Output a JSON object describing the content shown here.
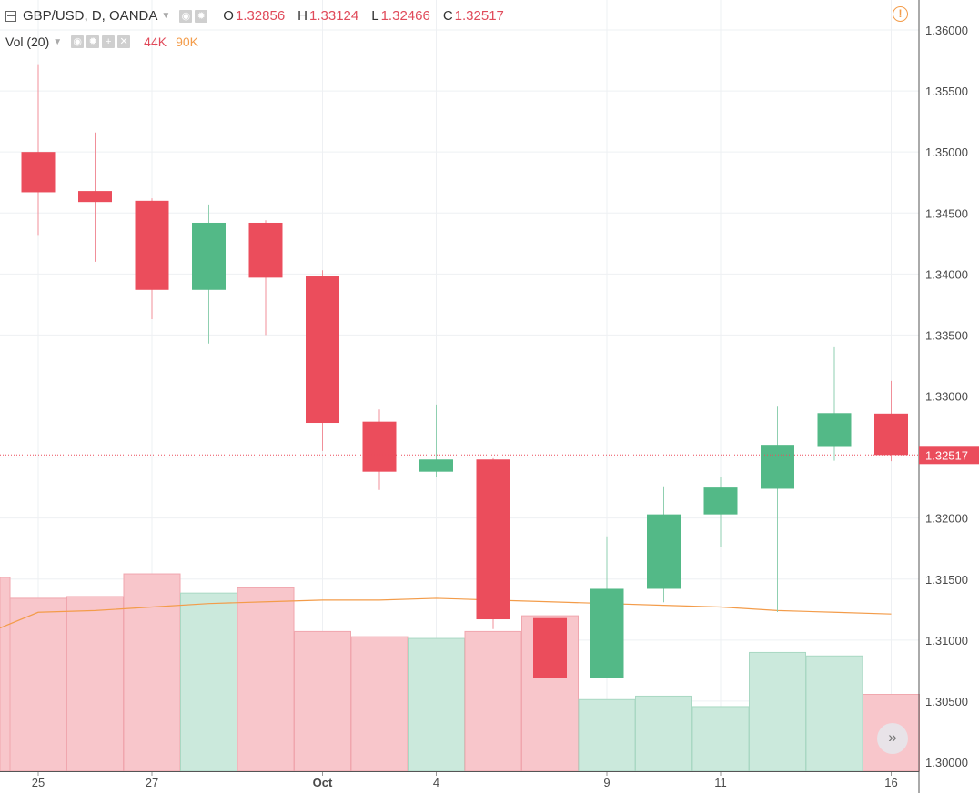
{
  "header": {
    "symbol": "GBP/USD, D, OANDA",
    "open_label": "O",
    "open": "1.32856",
    "high_label": "H",
    "high": "1.33124",
    "low_label": "L",
    "low": "1.32466",
    "close_label": "C",
    "close": "1.32517"
  },
  "volume_header": {
    "label": "Vol (20)",
    "volume_value": "44K",
    "ma_value": "90K"
  },
  "colors": {
    "up": "#53b987",
    "down": "#eb4d5c",
    "volume_up": "#cbe9dc",
    "volume_down": "#f8c6cb",
    "ma_line": "#f39c4a",
    "grid": "#eef0f3"
  },
  "icons": {
    "alert": "alert-circle-icon",
    "scroll": "chevron-double-right-icon"
  },
  "chart_data": {
    "type": "candlestick",
    "x_tick_labels": [
      "25",
      "27",
      "Oct",
      "4",
      "9",
      "11",
      "16"
    ],
    "y_tick_labels": [
      "1.36000",
      "1.35500",
      "1.35000",
      "1.34500",
      "1.34000",
      "1.33500",
      "1.33000",
      "1.32500",
      "1.32000",
      "1.31500",
      "1.31000",
      "1.30500",
      "1.30000"
    ],
    "y_range": [
      1.3,
      1.3612
    ],
    "last_price_label": "1.32517",
    "candles": [
      {
        "date": "25",
        "open": 1.35,
        "high": 1.3572,
        "low": 1.3432,
        "close": 1.3467
      },
      {
        "date": "26",
        "open": 1.3468,
        "high": 1.3516,
        "low": 1.341,
        "close": 1.3459
      },
      {
        "date": "27",
        "open": 1.346,
        "high": 1.3462,
        "low": 1.3363,
        "close": 1.3387
      },
      {
        "date": "28",
        "open": 1.3387,
        "high": 1.3457,
        "low": 1.3343,
        "close": 1.3442
      },
      {
        "date": "29",
        "open": 1.3442,
        "high": 1.3444,
        "low": 1.335,
        "close": 1.3397
      },
      {
        "date": "Oct",
        "open": 1.3398,
        "high": 1.3403,
        "low": 1.3255,
        "close": 1.3278
      },
      {
        "date": "2",
        "open": 1.3279,
        "high": 1.3289,
        "low": 1.3223,
        "close": 1.3238
      },
      {
        "date": "4",
        "open": 1.3238,
        "high": 1.3293,
        "low": 1.3234,
        "close": 1.3248
      },
      {
        "date": "5",
        "open": 1.3248,
        "high": 1.3249,
        "low": 1.3109,
        "close": 1.3117
      },
      {
        "date": "8",
        "open": 1.3118,
        "high": 1.3124,
        "low": 1.3028,
        "close": 1.3069
      },
      {
        "date": "9",
        "open": 1.3069,
        "high": 1.3185,
        "low": 1.3069,
        "close": 1.3142
      },
      {
        "date": "10",
        "open": 1.3142,
        "high": 1.3226,
        "low": 1.3131,
        "close": 1.3203
      },
      {
        "date": "11",
        "open": 1.3203,
        "high": 1.3234,
        "low": 1.3176,
        "close": 1.3225
      },
      {
        "date": "12",
        "open": 1.3224,
        "high": 1.3292,
        "low": 1.3123,
        "close": 1.326
      },
      {
        "date": "15",
        "open": 1.3259,
        "high": 1.334,
        "low": 1.3247,
        "close": 1.3286
      },
      {
        "date": "16",
        "open": 1.32856,
        "high": 1.33124,
        "low": 1.32466,
        "close": 1.32517
      }
    ],
    "volume": {
      "unit": "K",
      "bars": [
        {
          "value": 99,
          "direction": "down"
        },
        {
          "value": 100,
          "direction": "down"
        },
        {
          "value": 113,
          "direction": "down"
        },
        {
          "value": 102,
          "direction": "up"
        },
        {
          "value": 105,
          "direction": "down"
        },
        {
          "value": 80,
          "direction": "down"
        },
        {
          "value": 77,
          "direction": "down"
        },
        {
          "value": 76,
          "direction": "up"
        },
        {
          "value": 80,
          "direction": "down"
        },
        {
          "value": 89,
          "direction": "down"
        },
        {
          "value": 41,
          "direction": "up"
        },
        {
          "value": 43,
          "direction": "up"
        },
        {
          "value": 37,
          "direction": "up"
        },
        {
          "value": 68,
          "direction": "up"
        },
        {
          "value": 66,
          "direction": "up"
        },
        {
          "value": 44,
          "direction": "down"
        }
      ],
      "ma": [
        91,
        92,
        94,
        96,
        97,
        98,
        98,
        99,
        98,
        97,
        96,
        95,
        94,
        92,
        91,
        90
      ]
    }
  }
}
